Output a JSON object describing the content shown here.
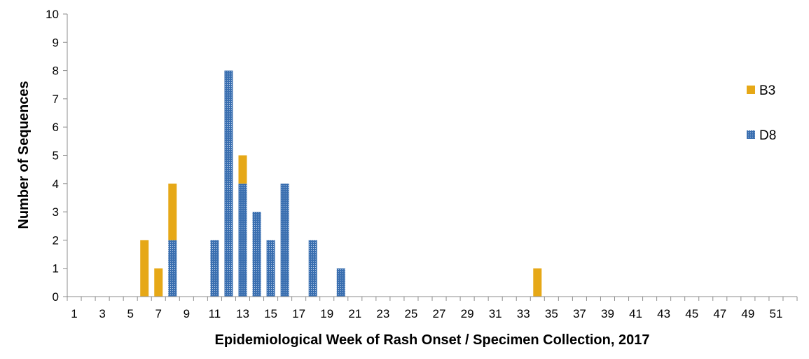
{
  "chart_data": {
    "type": "bar",
    "stacked": true,
    "xlabel": "Epidemiological Week of Rash Onset / Specimen Collection, 2017",
    "ylabel": "Number of Sequences",
    "ylim": [
      0,
      10
    ],
    "yticks": [
      "0",
      "1",
      "2",
      "3",
      "4",
      "5",
      "6",
      "7",
      "8",
      "9",
      "10"
    ],
    "xticks": [
      "1",
      "3",
      "5",
      "7",
      "9",
      "11",
      "13",
      "15",
      "17",
      "19",
      "21",
      "23",
      "25",
      "27",
      "29",
      "31",
      "33",
      "35",
      "37",
      "39",
      "41",
      "43",
      "45",
      "47",
      "49",
      "51"
    ],
    "weeks_range": [
      1,
      52
    ],
    "legend_position": "right",
    "series": [
      {
        "name": "D8",
        "color": "#3a6fb0",
        "pattern": "dotted",
        "points": [
          [
            8,
            2
          ],
          [
            11,
            2
          ],
          [
            12,
            8
          ],
          [
            13,
            4
          ],
          [
            14,
            3
          ],
          [
            15,
            2
          ],
          [
            16,
            4
          ],
          [
            18,
            2
          ],
          [
            20,
            1
          ]
        ]
      },
      {
        "name": "B3",
        "color": "#e6a817",
        "pattern": "solid",
        "points": [
          [
            6,
            2
          ],
          [
            7,
            1
          ],
          [
            8,
            2
          ],
          [
            13,
            1
          ],
          [
            34,
            1
          ]
        ]
      }
    ],
    "legend_order": [
      "B3",
      "D8"
    ]
  }
}
